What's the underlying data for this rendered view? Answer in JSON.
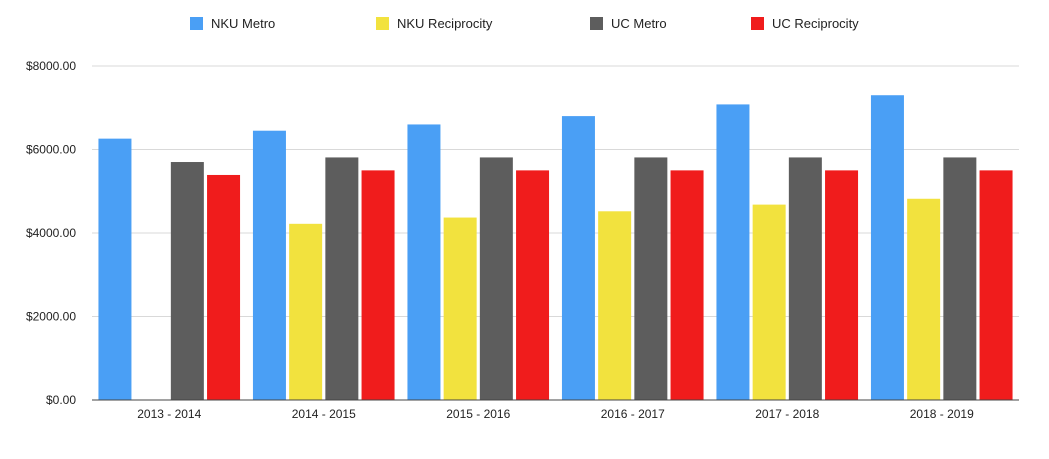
{
  "chart_data": {
    "type": "bar",
    "categories": [
      "2013 - 2014",
      "2014 - 2015",
      "2015 - 2016",
      "2016 - 2017",
      "2017 - 2018",
      "2018 - 2019"
    ],
    "series": [
      {
        "name": "NKU Metro",
        "color": "#4a9ff5",
        "values": [
          6260,
          6450,
          6600,
          6800,
          7080,
          7300
        ]
      },
      {
        "name": "NKU Reciprocity",
        "color": "#f2e23e",
        "values": [
          0,
          4220,
          4370,
          4520,
          4680,
          4820
        ]
      },
      {
        "name": "UC Metro",
        "color": "#5d5d5d",
        "values": [
          5700,
          5810,
          5810,
          5810,
          5810,
          5810
        ]
      },
      {
        "name": "UC Reciprocity",
        "color": "#f01c1c",
        "values": [
          5390,
          5500,
          5500,
          5500,
          5500,
          5500
        ]
      }
    ],
    "y_ticks": [
      0,
      2000,
      4000,
      6000,
      8000
    ],
    "y_tick_labels": [
      "$0.00",
      "$2000.00",
      "$4000.00",
      "$6000.00",
      "$8000.00"
    ],
    "ylim": [
      0,
      8000
    ],
    "title": "",
    "xlabel": "",
    "ylabel": "",
    "grid": true,
    "legend_position": "top"
  }
}
